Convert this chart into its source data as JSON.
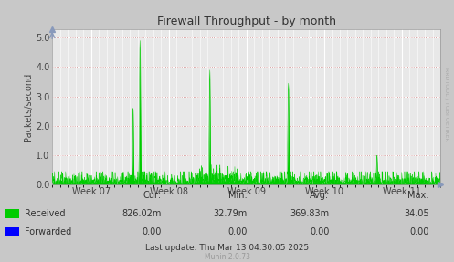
{
  "title": "Firewall Throughput - by month",
  "ylabel": "Packets/second",
  "yticks": [
    0.0,
    1.0,
    2.0,
    3.0,
    4.0,
    5.0
  ],
  "ylim": [
    0.0,
    5.3
  ],
  "week_labels": [
    "Week 07",
    "Week 08",
    "Week 09",
    "Week 10",
    "Week 11"
  ],
  "bg_color": "#c8c8c8",
  "plot_bg_color": "#e8e8e8",
  "grid_color_white": "#ffffff",
  "grid_color_red": "#cc8888",
  "line_color_received": "#00cc00",
  "fill_color_received": "#00cc00",
  "line_color_forwarded": "#0000ff",
  "stats_cur": "826.02m",
  "stats_min": "32.79m",
  "stats_avg": "369.83m",
  "stats_max": "34.05",
  "stats_cur_fwd": "0.00",
  "stats_min_fwd": "0.00",
  "stats_avg_fwd": "0.00",
  "stats_max_fwd": "0.00",
  "last_update": "Last update: Thu Mar 13 04:30:05 2025",
  "munin_version": "Munin 2.0.73",
  "rrdtool_label": "RRDTOOL / TOBI OETIKER",
  "arrow_color": "#8899bb"
}
